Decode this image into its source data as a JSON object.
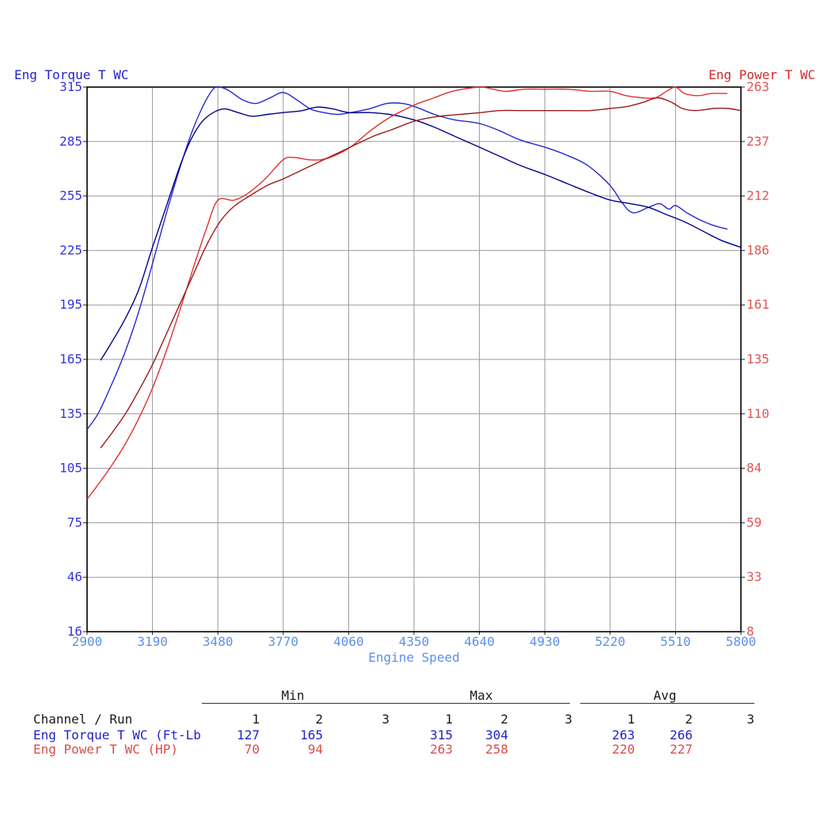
{
  "chart_data": {
    "type": "line",
    "grid": true,
    "x_axis": {
      "label": "Engine Speed",
      "range": [
        2900,
        5800
      ],
      "ticks": [
        "2900",
        "3190",
        "3480",
        "3770",
        "4060",
        "4350",
        "4640",
        "4930",
        "5220",
        "5510",
        "5800"
      ],
      "color": "#5e90e8"
    },
    "left_axis": {
      "label": "Eng Torque T WC",
      "range": [
        16,
        315
      ],
      "ticks": [
        "315",
        "285",
        "255",
        "225",
        "195",
        "165",
        "135",
        "105",
        "75",
        "46",
        "16"
      ],
      "label_color": "#2222cc",
      "tick_color": "#3535dd"
    },
    "right_axis": {
      "label": "Eng Power T WC",
      "range": [
        8,
        263
      ],
      "ticks": [
        "263",
        "237",
        "212",
        "186",
        "161",
        "135",
        "110",
        "84",
        "59",
        "33",
        "8"
      ],
      "label_color": "#cc2b2b",
      "tick_color": "#e05656"
    },
    "series": [
      {
        "name": "Eng Torque T WC run 1",
        "axis": "left",
        "color": "#2626cf",
        "points": [
          [
            2900,
            127
          ],
          [
            2950,
            136
          ],
          [
            3010,
            152
          ],
          [
            3070,
            170
          ],
          [
            3130,
            192
          ],
          [
            3190,
            218
          ],
          [
            3250,
            245
          ],
          [
            3310,
            270
          ],
          [
            3370,
            292
          ],
          [
            3420,
            306
          ],
          [
            3460,
            314
          ],
          [
            3490,
            315
          ],
          [
            3530,
            313
          ],
          [
            3590,
            308
          ],
          [
            3650,
            306
          ],
          [
            3710,
            309
          ],
          [
            3770,
            312
          ],
          [
            3830,
            308
          ],
          [
            3890,
            303
          ],
          [
            3950,
            301
          ],
          [
            4010,
            300
          ],
          [
            4070,
            301
          ],
          [
            4150,
            303
          ],
          [
            4230,
            306
          ],
          [
            4300,
            306
          ],
          [
            4360,
            304
          ],
          [
            4440,
            300
          ],
          [
            4530,
            297
          ],
          [
            4640,
            295
          ],
          [
            4730,
            291
          ],
          [
            4820,
            286
          ],
          [
            4930,
            282
          ],
          [
            5020,
            278
          ],
          [
            5120,
            272
          ],
          [
            5220,
            261
          ],
          [
            5270,
            252
          ],
          [
            5320,
            246
          ],
          [
            5390,
            249
          ],
          [
            5440,
            251
          ],
          [
            5480,
            248
          ],
          [
            5510,
            250
          ],
          [
            5560,
            246
          ],
          [
            5620,
            242
          ],
          [
            5680,
            239
          ],
          [
            5740,
            237
          ]
        ]
      },
      {
        "name": "Eng Torque T WC run 2",
        "axis": "left",
        "color": "#00008b",
        "points": [
          [
            2960,
            165
          ],
          [
            3010,
            175
          ],
          [
            3070,
            188
          ],
          [
            3130,
            204
          ],
          [
            3190,
            227
          ],
          [
            3250,
            249
          ],
          [
            3310,
            271
          ],
          [
            3360,
            286
          ],
          [
            3410,
            296
          ],
          [
            3460,
            301
          ],
          [
            3510,
            303
          ],
          [
            3570,
            301
          ],
          [
            3630,
            299
          ],
          [
            3700,
            300
          ],
          [
            3770,
            301
          ],
          [
            3850,
            302
          ],
          [
            3920,
            304
          ],
          [
            3990,
            303
          ],
          [
            4060,
            301
          ],
          [
            4150,
            301
          ],
          [
            4240,
            300
          ],
          [
            4350,
            297
          ],
          [
            4440,
            293
          ],
          [
            4530,
            288
          ],
          [
            4640,
            282
          ],
          [
            4730,
            277
          ],
          [
            4820,
            272
          ],
          [
            4930,
            267
          ],
          [
            5030,
            262
          ],
          [
            5130,
            257
          ],
          [
            5220,
            253
          ],
          [
            5310,
            251
          ],
          [
            5390,
            249
          ],
          [
            5470,
            245
          ],
          [
            5550,
            241
          ],
          [
            5630,
            236
          ],
          [
            5710,
            231
          ],
          [
            5800,
            227
          ]
        ]
      },
      {
        "name": "Eng Power T WC run 1",
        "axis": "right",
        "color": "#e03030",
        "points": [
          [
            2900,
            70
          ],
          [
            2950,
            77
          ],
          [
            3010,
            86
          ],
          [
            3070,
            96
          ],
          [
            3130,
            108
          ],
          [
            3190,
            122
          ],
          [
            3250,
            139
          ],
          [
            3310,
            158
          ],
          [
            3370,
            178
          ],
          [
            3430,
            197
          ],
          [
            3480,
            210
          ],
          [
            3550,
            210
          ],
          [
            3610,
            213
          ],
          [
            3690,
            220
          ],
          [
            3770,
            229
          ],
          [
            3820,
            230
          ],
          [
            3880,
            229
          ],
          [
            3940,
            229
          ],
          [
            4000,
            231
          ],
          [
            4070,
            235
          ],
          [
            4150,
            242
          ],
          [
            4230,
            248
          ],
          [
            4300,
            252
          ],
          [
            4360,
            255
          ],
          [
            4440,
            258
          ],
          [
            4520,
            261
          ],
          [
            4640,
            263
          ],
          [
            4700,
            262
          ],
          [
            4760,
            261
          ],
          [
            4840,
            262
          ],
          [
            4930,
            262
          ],
          [
            5030,
            262
          ],
          [
            5130,
            261
          ],
          [
            5220,
            261
          ],
          [
            5290,
            259
          ],
          [
            5360,
            258
          ],
          [
            5420,
            258
          ],
          [
            5470,
            261
          ],
          [
            5510,
            263
          ],
          [
            5550,
            260
          ],
          [
            5610,
            259
          ],
          [
            5670,
            260
          ],
          [
            5740,
            260
          ]
        ]
      },
      {
        "name": "Eng Power T WC run 2",
        "axis": "right",
        "color": "#991b1b",
        "points": [
          [
            2960,
            94
          ],
          [
            3010,
            101
          ],
          [
            3070,
            110
          ],
          [
            3130,
            121
          ],
          [
            3190,
            133
          ],
          [
            3250,
            147
          ],
          [
            3310,
            161
          ],
          [
            3370,
            175
          ],
          [
            3430,
            189
          ],
          [
            3490,
            200
          ],
          [
            3550,
            207
          ],
          [
            3620,
            212
          ],
          [
            3700,
            217
          ],
          [
            3770,
            220
          ],
          [
            3850,
            224
          ],
          [
            3930,
            228
          ],
          [
            4010,
            232
          ],
          [
            4090,
            236
          ],
          [
            4170,
            240
          ],
          [
            4250,
            243
          ],
          [
            4350,
            247
          ],
          [
            4440,
            249
          ],
          [
            4530,
            250
          ],
          [
            4640,
            251
          ],
          [
            4730,
            252
          ],
          [
            4820,
            252
          ],
          [
            4930,
            252
          ],
          [
            5030,
            252
          ],
          [
            5130,
            252
          ],
          [
            5220,
            253
          ],
          [
            5300,
            254
          ],
          [
            5370,
            256
          ],
          [
            5430,
            258
          ],
          [
            5490,
            256
          ],
          [
            5540,
            253
          ],
          [
            5600,
            252
          ],
          [
            5680,
            253
          ],
          [
            5740,
            253
          ],
          [
            5800,
            252
          ]
        ]
      }
    ]
  },
  "stats_table": {
    "row_header": "Channel / Run",
    "groups": [
      "Min",
      "Max",
      "Avg"
    ],
    "run_headers": [
      "1",
      "2",
      "3"
    ],
    "header_color": "#1a1a1a",
    "rows": [
      {
        "label": "Eng Torque T WC (Ft-Lb",
        "color": "#2222cc",
        "values": [
          [
            "127",
            "165",
            ""
          ],
          [
            "315",
            "304",
            ""
          ],
          [
            "263",
            "266",
            ""
          ]
        ]
      },
      {
        "label": "Eng Power T WC (HP)",
        "color": "#d94d4d",
        "values": [
          [
            "70",
            "94",
            ""
          ],
          [
            "263",
            "258",
            ""
          ],
          [
            "220",
            "227",
            ""
          ]
        ]
      }
    ]
  }
}
